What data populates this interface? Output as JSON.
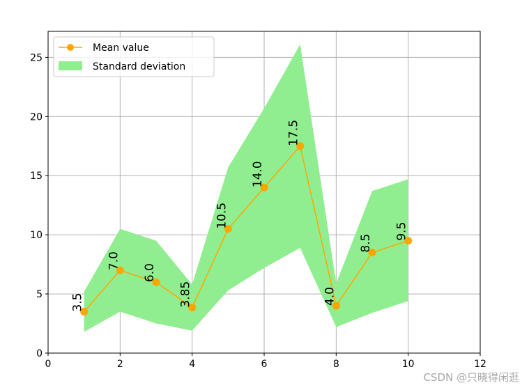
{
  "chart_data": {
    "type": "line",
    "title": "",
    "xlabel": "",
    "ylabel": "",
    "xlim": [
      0,
      12
    ],
    "ylim": [
      0,
      27.2
    ],
    "grid": true,
    "legend_position": "upper left",
    "x_ticks": [
      0,
      2,
      4,
      6,
      8,
      10,
      12
    ],
    "y_ticks": [
      0,
      5,
      10,
      15,
      20,
      25
    ],
    "x": [
      1,
      2,
      3,
      4,
      5,
      6,
      7,
      8,
      9,
      10
    ],
    "series": [
      {
        "name": "Mean value",
        "kind": "line+marker",
        "color": "#FFA500",
        "values": [
          3.5,
          7.0,
          6.0,
          3.85,
          10.5,
          14.0,
          17.5,
          4.0,
          8.5,
          9.5
        ],
        "labels": [
          "3.5",
          "7.0",
          "6.0",
          "3.85",
          "10.5",
          "14.0",
          "17.5",
          "4.0",
          "8.5",
          "9.5"
        ]
      },
      {
        "name": "Standard deviation",
        "kind": "fill_between",
        "color": "#90EE90",
        "upper": [
          5.2,
          10.5,
          9.5,
          5.8,
          15.7,
          20.7,
          26.1,
          5.9,
          13.7,
          14.7
        ],
        "lower": [
          1.8,
          3.5,
          2.5,
          1.9,
          5.3,
          7.2,
          8.9,
          2.2,
          3.4,
          4.4
        ]
      }
    ]
  },
  "legend": {
    "items": [
      {
        "label": "Mean value",
        "color": "#FFA500"
      },
      {
        "label": "Standard deviation",
        "color": "#90EE90"
      }
    ]
  },
  "watermark": "CSDN @只晓得闲逛"
}
